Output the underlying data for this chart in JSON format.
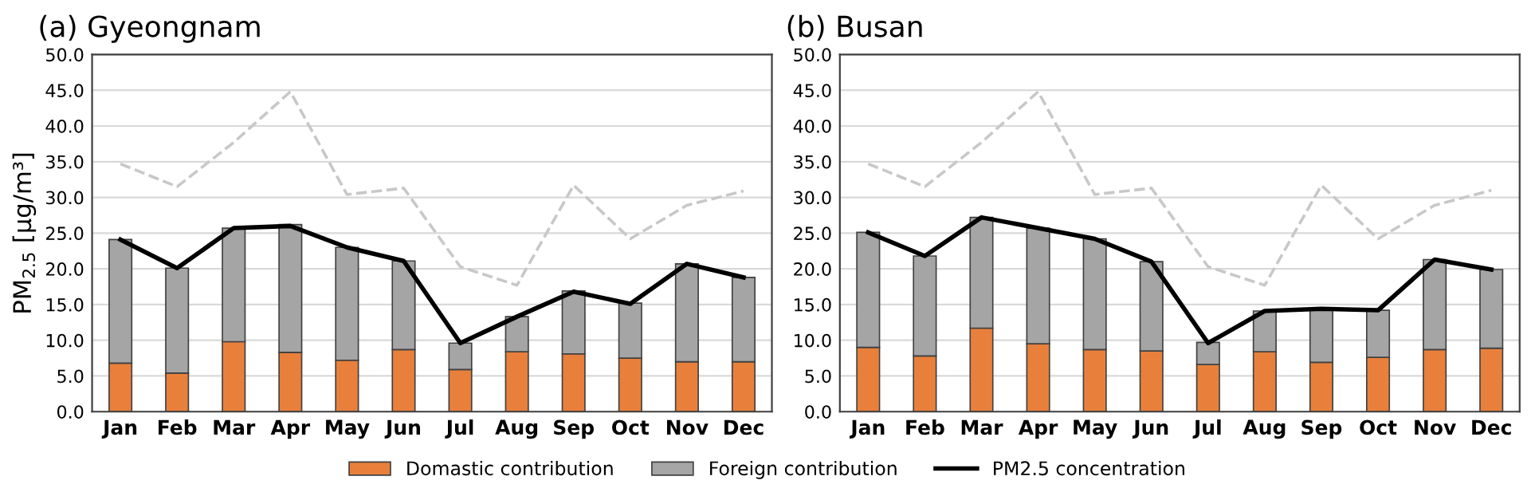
{
  "chart_data": [
    {
      "type": "bar",
      "title": "(a) Gyeongnam",
      "ylabel": "PM$_{2.5}$ [μg/m³]",
      "categories": [
        "Jan",
        "Feb",
        "Mar",
        "Apr",
        "May",
        "Jun",
        "Jul",
        "Aug",
        "Sep",
        "Oct",
        "Nov",
        "Dec"
      ],
      "stacked": true,
      "ylim": [
        0,
        50
      ],
      "yticks": [
        {
          "value": 0,
          "label": "0.0"
        },
        {
          "value": 5,
          "label": "5.0"
        },
        {
          "value": 10,
          "label": "10.0"
        },
        {
          "value": 15,
          "label": "15.0"
        },
        {
          "value": 20,
          "label": "20.0"
        },
        {
          "value": 25,
          "label": "25.0"
        },
        {
          "value": 30,
          "label": "30.0"
        },
        {
          "value": 35,
          "label": "35.0"
        },
        {
          "value": 40,
          "label": "40.0"
        },
        {
          "value": 45,
          "label": "45.0"
        },
        {
          "value": 50,
          "label": "50.0"
        }
      ],
      "grid": "y",
      "legend": "bottom",
      "series": [
        {
          "name": "Domastic contribution",
          "color": "#e8803c",
          "values": [
            6.8,
            5.4,
            9.8,
            8.3,
            7.2,
            8.7,
            5.9,
            8.4,
            8.1,
            7.5,
            7.0,
            7.0
          ]
        },
        {
          "name": "Foreign contribution",
          "color": "#a5a5a5",
          "values": [
            17.3,
            14.7,
            15.9,
            17.9,
            15.8,
            12.4,
            3.7,
            4.9,
            8.8,
            7.7,
            13.7,
            11.8
          ]
        },
        {
          "type": "line",
          "color": "#c8c8c8",
          "line_style": "dashed",
          "values": [
            34.7,
            31.5,
            37.7,
            44.8,
            30.4,
            31.3,
            20.3,
            17.7,
            31.7,
            24.2,
            28.9,
            30.9
          ]
        },
        {
          "name": "PM2.5 concentration",
          "type": "line",
          "color": "#000000",
          "line_style": "solid",
          "values": [
            24.1,
            20.1,
            25.7,
            26.0,
            23.0,
            21.1,
            9.6,
            13.3,
            16.8,
            15.1,
            20.7,
            18.8
          ]
        }
      ]
    },
    {
      "type": "bar",
      "title": "(b) Busan",
      "categories": [
        "Jan",
        "Feb",
        "Mar",
        "Apr",
        "May",
        "Jun",
        "Jul",
        "Aug",
        "Sep",
        "Oct",
        "Nov",
        "Dec"
      ],
      "stacked": true,
      "ylim": [
        0,
        50
      ],
      "yticks": [
        {
          "value": 0,
          "label": "0.0"
        },
        {
          "value": 5,
          "label": "5.0"
        },
        {
          "value": 10,
          "label": "10.0"
        },
        {
          "value": 15,
          "label": "15.0"
        },
        {
          "value": 20,
          "label": "20.0"
        },
        {
          "value": 25,
          "label": "25.0"
        },
        {
          "value": 30,
          "label": "30.0"
        },
        {
          "value": 35,
          "label": "35.0"
        },
        {
          "value": 40,
          "label": "40.0"
        },
        {
          "value": 45,
          "label": "45.0"
        },
        {
          "value": 50,
          "label": "50.0"
        }
      ],
      "grid": "y",
      "series": [
        {
          "color": "#e8803c",
          "values": [
            9.0,
            7.8,
            11.7,
            9.5,
            8.7,
            8.5,
            6.6,
            8.4,
            6.9,
            7.6,
            8.7,
            8.9
          ]
        },
        {
          "color": "#a5a5a5",
          "values": [
            16.1,
            14.0,
            15.5,
            16.2,
            15.5,
            12.5,
            3.1,
            5.7,
            7.5,
            6.6,
            12.6,
            11.0
          ]
        },
        {
          "type": "line",
          "color": "#c8c8c8",
          "line_style": "dashed",
          "values": [
            34.7,
            31.5,
            37.7,
            44.8,
            30.4,
            31.3,
            20.3,
            17.7,
            31.7,
            24.2,
            28.9,
            31.0
          ]
        },
        {
          "type": "line",
          "color": "#000000",
          "line_style": "solid",
          "values": [
            25.1,
            21.8,
            27.2,
            25.7,
            24.2,
            21.0,
            9.6,
            14.1,
            14.4,
            14.2,
            21.3,
            19.9
          ]
        }
      ]
    }
  ]
}
